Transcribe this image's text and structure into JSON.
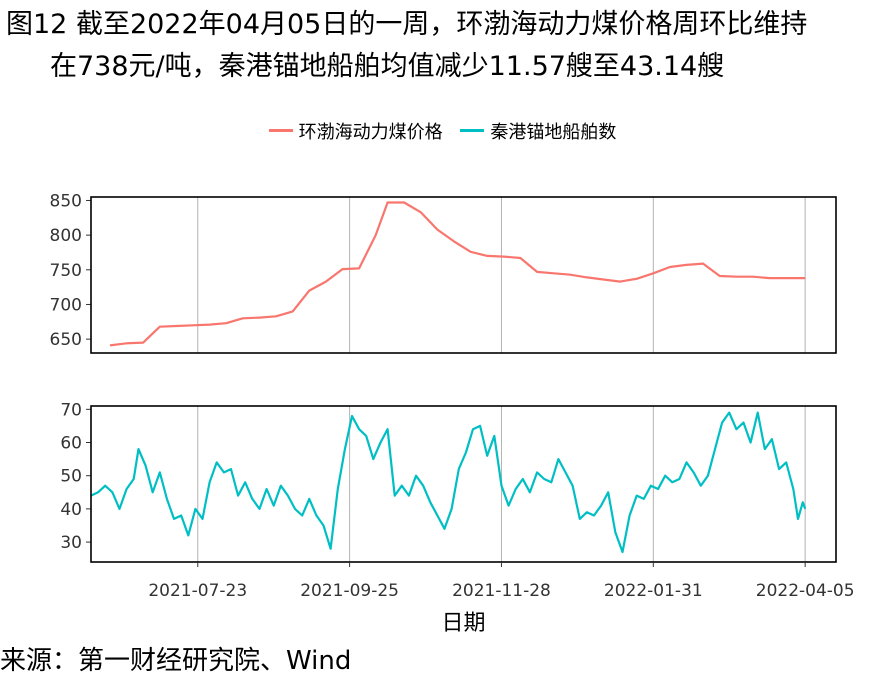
{
  "title_line1": "图12  截至2022年04月05日的一周，环渤海动力煤价格周环比维持",
  "title_line2": "在738元/吨，秦港锚地船舶均值减少11.57艘至43.14艘",
  "source": "来源：第一财经研究院、Wind",
  "colors": {
    "price": "#F8766D",
    "ships": "#00BFC4",
    "grid": "#B3B3B3"
  },
  "chart_data": {
    "type": "line",
    "xlabel": "日期",
    "x_ticks": [
      "2021-07-23",
      "2021-09-25",
      "2021-11-28",
      "2022-01-31",
      "2022-04-05"
    ],
    "xlim": [
      "2021-06-08",
      "2022-04-18"
    ],
    "legend_position": "top",
    "panels": [
      {
        "series_name": "环渤海动力煤价格",
        "ylim": [
          630,
          855
        ],
        "y_ticks": [
          650,
          700,
          750,
          800,
          850
        ],
        "points": [
          [
            "2021-06-16",
            641
          ],
          [
            "2021-06-23",
            644
          ],
          [
            "2021-06-30",
            645
          ],
          [
            "2021-07-07",
            668
          ],
          [
            "2021-07-14",
            669
          ],
          [
            "2021-07-21",
            670
          ],
          [
            "2021-07-28",
            671
          ],
          [
            "2021-08-04",
            673
          ],
          [
            "2021-08-11",
            680
          ],
          [
            "2021-08-18",
            681
          ],
          [
            "2021-08-25",
            683
          ],
          [
            "2021-09-01",
            690
          ],
          [
            "2021-09-08",
            720
          ],
          [
            "2021-09-15",
            733
          ],
          [
            "2021-09-22",
            751
          ],
          [
            "2021-09-29",
            752
          ],
          [
            "2021-10-06",
            800
          ],
          [
            "2021-10-11",
            847
          ],
          [
            "2021-10-18",
            847
          ],
          [
            "2021-10-25",
            833
          ],
          [
            "2021-11-01",
            808
          ],
          [
            "2021-11-08",
            791
          ],
          [
            "2021-11-15",
            776
          ],
          [
            "2021-11-22",
            770
          ],
          [
            "2021-11-29",
            769
          ],
          [
            "2021-12-06",
            767
          ],
          [
            "2021-12-13",
            747
          ],
          [
            "2021-12-20",
            745
          ],
          [
            "2021-12-27",
            743
          ],
          [
            "2022-01-03",
            739
          ],
          [
            "2022-01-10",
            736
          ],
          [
            "2022-01-17",
            733
          ],
          [
            "2022-01-24",
            737
          ],
          [
            "2022-01-31",
            745
          ],
          [
            "2022-02-07",
            754
          ],
          [
            "2022-02-14",
            757
          ],
          [
            "2022-02-21",
            759
          ],
          [
            "2022-02-28",
            741
          ],
          [
            "2022-03-07",
            740
          ],
          [
            "2022-03-14",
            740
          ],
          [
            "2022-03-21",
            738
          ],
          [
            "2022-03-28",
            738
          ],
          [
            "2022-04-05",
            738
          ]
        ]
      },
      {
        "series_name": "秦港锚地船舶数",
        "ylim": [
          24,
          71
        ],
        "y_ticks": [
          30,
          40,
          50,
          60,
          70
        ],
        "points": [
          [
            "2021-06-08",
            44
          ],
          [
            "2021-06-11",
            45
          ],
          [
            "2021-06-14",
            47
          ],
          [
            "2021-06-17",
            45
          ],
          [
            "2021-06-20",
            40
          ],
          [
            "2021-06-23",
            46
          ],
          [
            "2021-06-26",
            49
          ],
          [
            "2021-06-28",
            58
          ],
          [
            "2021-07-01",
            53
          ],
          [
            "2021-07-04",
            45
          ],
          [
            "2021-07-07",
            51
          ],
          [
            "2021-07-10",
            43
          ],
          [
            "2021-07-13",
            37
          ],
          [
            "2021-07-16",
            38
          ],
          [
            "2021-07-19",
            32
          ],
          [
            "2021-07-22",
            40
          ],
          [
            "2021-07-25",
            37
          ],
          [
            "2021-07-28",
            48
          ],
          [
            "2021-07-31",
            54
          ],
          [
            "2021-08-03",
            51
          ],
          [
            "2021-08-06",
            52
          ],
          [
            "2021-08-09",
            44
          ],
          [
            "2021-08-12",
            48
          ],
          [
            "2021-08-15",
            43
          ],
          [
            "2021-08-18",
            40
          ],
          [
            "2021-08-21",
            46
          ],
          [
            "2021-08-24",
            41
          ],
          [
            "2021-08-27",
            47
          ],
          [
            "2021-08-30",
            44
          ],
          [
            "2021-09-02",
            40
          ],
          [
            "2021-09-05",
            38
          ],
          [
            "2021-09-08",
            43
          ],
          [
            "2021-09-11",
            38
          ],
          [
            "2021-09-14",
            35
          ],
          [
            "2021-09-17",
            28
          ],
          [
            "2021-09-20",
            46
          ],
          [
            "2021-09-23",
            58
          ],
          [
            "2021-09-26",
            68
          ],
          [
            "2021-09-29",
            64
          ],
          [
            "2021-10-02",
            62
          ],
          [
            "2021-10-05",
            55
          ],
          [
            "2021-10-08",
            60
          ],
          [
            "2021-10-11",
            64
          ],
          [
            "2021-10-14",
            44
          ],
          [
            "2021-10-17",
            47
          ],
          [
            "2021-10-20",
            44
          ],
          [
            "2021-10-23",
            50
          ],
          [
            "2021-10-26",
            47
          ],
          [
            "2021-10-29",
            42
          ],
          [
            "2021-11-01",
            38
          ],
          [
            "2021-11-04",
            34
          ],
          [
            "2021-11-07",
            40
          ],
          [
            "2021-11-10",
            52
          ],
          [
            "2021-11-13",
            57
          ],
          [
            "2021-11-16",
            64
          ],
          [
            "2021-11-19",
            65
          ],
          [
            "2021-11-22",
            56
          ],
          [
            "2021-11-25",
            62
          ],
          [
            "2021-11-28",
            47
          ],
          [
            "2021-12-01",
            41
          ],
          [
            "2021-12-04",
            46
          ],
          [
            "2021-12-07",
            49
          ],
          [
            "2021-12-10",
            45
          ],
          [
            "2021-12-13",
            51
          ],
          [
            "2021-12-16",
            49
          ],
          [
            "2021-12-19",
            48
          ],
          [
            "2021-12-22",
            55
          ],
          [
            "2021-12-25",
            51
          ],
          [
            "2021-12-28",
            47
          ],
          [
            "2021-12-31",
            37
          ],
          [
            "2022-01-03",
            39
          ],
          [
            "2022-01-06",
            38
          ],
          [
            "2022-01-09",
            41
          ],
          [
            "2022-01-12",
            45
          ],
          [
            "2022-01-15",
            33
          ],
          [
            "2022-01-18",
            27
          ],
          [
            "2022-01-21",
            38
          ],
          [
            "2022-01-24",
            44
          ],
          [
            "2022-01-27",
            43
          ],
          [
            "2022-01-30",
            47
          ],
          [
            "2022-02-02",
            46
          ],
          [
            "2022-02-05",
            50
          ],
          [
            "2022-02-08",
            48
          ],
          [
            "2022-02-11",
            49
          ],
          [
            "2022-02-14",
            54
          ],
          [
            "2022-02-17",
            51
          ],
          [
            "2022-02-20",
            47
          ],
          [
            "2022-02-23",
            50
          ],
          [
            "2022-02-26",
            58
          ],
          [
            "2022-03-01",
            66
          ],
          [
            "2022-03-04",
            69
          ],
          [
            "2022-03-07",
            64
          ],
          [
            "2022-03-10",
            66
          ],
          [
            "2022-03-13",
            60
          ],
          [
            "2022-03-16",
            69
          ],
          [
            "2022-03-19",
            58
          ],
          [
            "2022-03-22",
            61
          ],
          [
            "2022-03-25",
            52
          ],
          [
            "2022-03-28",
            54
          ],
          [
            "2022-03-31",
            46
          ],
          [
            "2022-04-02",
            37
          ],
          [
            "2022-04-04",
            42
          ],
          [
            "2022-04-05",
            40
          ]
        ]
      }
    ]
  }
}
